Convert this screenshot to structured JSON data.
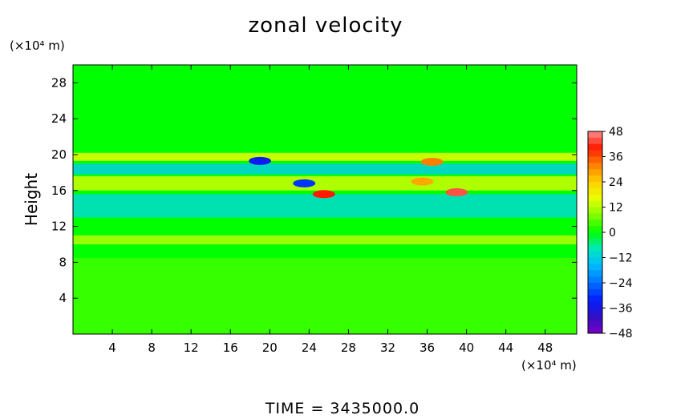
{
  "chart_data": {
    "type": "heatmap",
    "title": "zonal velocity",
    "ylabel": "Height",
    "x_unit": "(×10⁴ m)",
    "y_unit": "(×10⁴ m)",
    "x_ticks": [
      4,
      8,
      12,
      16,
      20,
      24,
      28,
      32,
      36,
      40,
      44,
      48
    ],
    "y_ticks": [
      4,
      8,
      12,
      16,
      20,
      24,
      28
    ],
    "xlim": [
      0,
      51.2
    ],
    "ylim": [
      0,
      30
    ],
    "colorbar": {
      "ticks": [
        48,
        36,
        24,
        12,
        0,
        -12,
        -24,
        -36,
        -48
      ],
      "range": [
        -48,
        48
      ]
    },
    "field_description": "zonal velocity field: near zero above 21, strong alternating jets between 9 and 20, weak positive cells below 8",
    "bands": [
      {
        "y_from": 21,
        "y_to": 30,
        "value": 0
      },
      {
        "y_from": 19.3,
        "y_to": 20.2,
        "value": 16
      },
      {
        "y_from": 17.8,
        "y_to": 19.0,
        "value": -12
      },
      {
        "y_from": 16.0,
        "y_to": 17.6,
        "value": 14
      },
      {
        "y_from": 13.0,
        "y_to": 15.6,
        "value": -10
      },
      {
        "y_from": 10.0,
        "y_to": 11.0,
        "value": 12
      },
      {
        "y_from": 0,
        "y_to": 8.5,
        "value": 4
      }
    ],
    "extremes": [
      {
        "x": 19,
        "y": 19.3,
        "value": -34
      },
      {
        "x": 23.5,
        "y": 16.8,
        "value": -30
      },
      {
        "x": 25.5,
        "y": 15.6,
        "value": 40
      },
      {
        "x": 36.5,
        "y": 19.2,
        "value": 32
      },
      {
        "x": 39,
        "y": 15.8,
        "value": 44
      },
      {
        "x": 35.5,
        "y": 17.0,
        "value": 28
      }
    ]
  },
  "footer": {
    "time_label": "TIME  =  3435000.0"
  },
  "colors": {
    "background_field": "#00ff00",
    "negative_end": "#7a00c0",
    "positive_end": "#ff8c8c"
  }
}
